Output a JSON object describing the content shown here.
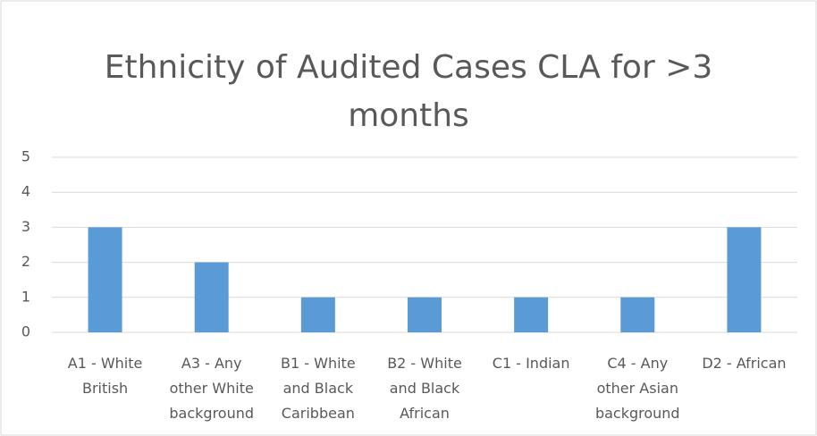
{
  "chart_data": {
    "type": "bar",
    "title": "Ethnicity of Audited Cases CLA for >3 months",
    "categories": [
      "A1 - White British",
      "A3 - Any other White background",
      "B1 - White and Black Caribbean",
      "B2 - White and Black African",
      "C1 - Indian",
      "C4 - Any other Asian background",
      "D2 - African"
    ],
    "values": [
      3,
      2,
      1,
      1,
      1,
      1,
      3
    ],
    "color": "#5b9bd5",
    "ylim": [
      0,
      5
    ],
    "yticks": [
      0,
      1,
      2,
      3,
      4,
      5
    ],
    "grid": true
  }
}
